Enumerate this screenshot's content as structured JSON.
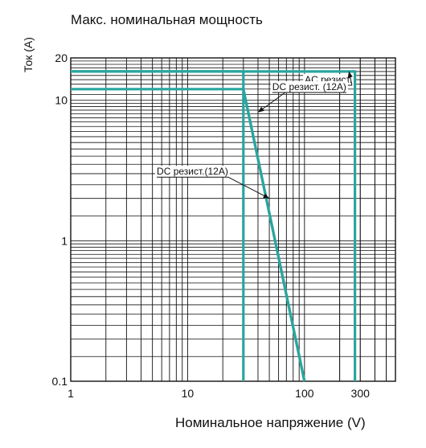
{
  "chart_data": {
    "type": "line",
    "title": "Макс. номинальная мощность",
    "xlabel": "Номинальное напряжение (V)",
    "ylabel": "Ток (A)",
    "x_scale": "log",
    "y_scale": "log",
    "xlim": [
      1,
      600
    ],
    "ylim": [
      0.1,
      20
    ],
    "grid": true,
    "x_ticks": [
      {
        "value": 1,
        "label": "1"
      },
      {
        "value": 10,
        "label": "10"
      },
      {
        "value": 100,
        "label": "100"
      },
      {
        "value": 300,
        "label": "300"
      }
    ],
    "y_ticks": [
      {
        "value": 0.1,
        "label": "0.1"
      },
      {
        "value": 1,
        "label": "1"
      },
      {
        "value": 10,
        "label": "10"
      },
      {
        "value": 20,
        "label": "20"
      }
    ],
    "series": [
      {
        "x": [
          1,
          30,
          30
        ],
        "y": [
          16,
          16,
          0.1
        ]
      },
      {
        "x": [
          1,
          30,
          270,
          270
        ],
        "y": [
          16,
          16,
          16,
          0.1
        ]
      },
      {
        "x": [
          1,
          30,
          100
        ],
        "y": [
          12,
          12,
          0.1
        ]
      },
      {
        "x": [
          30,
          100
        ],
        "y": [
          12,
          0.1
        ]
      }
    ],
    "annotations": [
      {
        "text": "AC резист.",
        "x": 160,
        "y": 13.3,
        "arrow_to": [
          240,
          16
        ]
      },
      {
        "text": "DC резист. (12A)",
        "x": 110,
        "y": 11.8,
        "arrow_to": [
          40,
          8.2
        ]
      },
      {
        "text": "DC резист.(12A)",
        "x": 11,
        "y": 2.95,
        "arrow_to": [
          50,
          2.0
        ]
      }
    ],
    "colors": {
      "line": "#2aa59f",
      "grid": "#111111"
    }
  }
}
